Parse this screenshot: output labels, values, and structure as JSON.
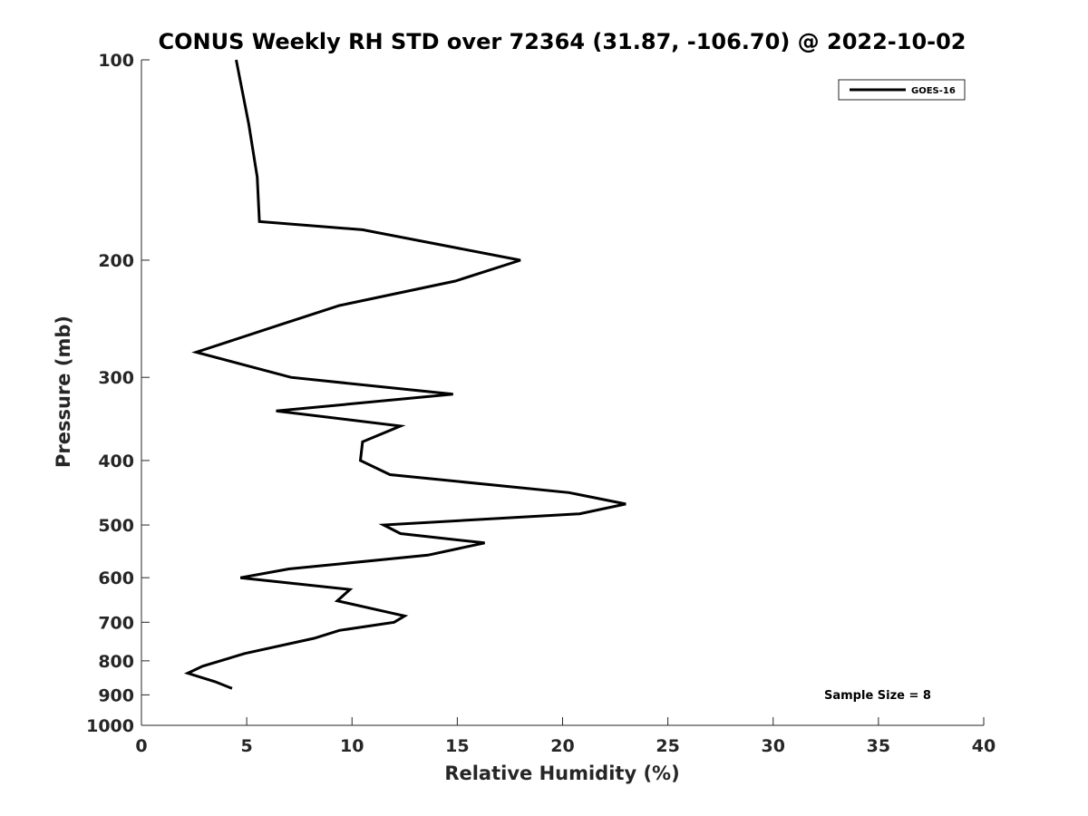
{
  "chart_data": {
    "type": "line",
    "title": "CONUS Weekly RH STD over 72364 (31.87, -106.70) @ 2022-10-02",
    "xlabel": "Relative Humidity (%)",
    "ylabel": "Pressure (mb)",
    "xlim": [
      0,
      40
    ],
    "ylim": [
      100,
      1000
    ],
    "y_scale": "log",
    "y_direction": "reversed",
    "x_ticks": [
      0,
      5,
      10,
      15,
      20,
      25,
      30,
      35,
      40
    ],
    "y_ticks": [
      100,
      200,
      300,
      400,
      500,
      600,
      700,
      800,
      900,
      1000
    ],
    "grid": false,
    "legend_position": "top-right",
    "series": [
      {
        "name": "GOES-16",
        "color": "#000000",
        "points": [
          {
            "x": 4.5,
            "y": 100
          },
          {
            "x": 5.1,
            "y": 125
          },
          {
            "x": 5.5,
            "y": 150
          },
          {
            "x": 5.6,
            "y": 175
          },
          {
            "x": 10.5,
            "y": 180
          },
          {
            "x": 18.0,
            "y": 200
          },
          {
            "x": 14.9,
            "y": 215
          },
          {
            "x": 9.4,
            "y": 234
          },
          {
            "x": 6.6,
            "y": 250
          },
          {
            "x": 2.6,
            "y": 275
          },
          {
            "x": 7.1,
            "y": 300
          },
          {
            "x": 14.8,
            "y": 318
          },
          {
            "x": 6.4,
            "y": 337
          },
          {
            "x": 12.3,
            "y": 355
          },
          {
            "x": 10.5,
            "y": 375
          },
          {
            "x": 10.4,
            "y": 400
          },
          {
            "x": 11.8,
            "y": 420
          },
          {
            "x": 20.3,
            "y": 447
          },
          {
            "x": 23.0,
            "y": 465
          },
          {
            "x": 20.8,
            "y": 481
          },
          {
            "x": 11.5,
            "y": 500
          },
          {
            "x": 12.3,
            "y": 515
          },
          {
            "x": 16.3,
            "y": 532
          },
          {
            "x": 13.6,
            "y": 555
          },
          {
            "x": 7.0,
            "y": 582
          },
          {
            "x": 4.7,
            "y": 600
          },
          {
            "x": 9.9,
            "y": 625
          },
          {
            "x": 9.3,
            "y": 650
          },
          {
            "x": 11.6,
            "y": 675
          },
          {
            "x": 12.5,
            "y": 685
          },
          {
            "x": 12.0,
            "y": 700
          },
          {
            "x": 9.4,
            "y": 720
          },
          {
            "x": 8.2,
            "y": 740
          },
          {
            "x": 4.9,
            "y": 780
          },
          {
            "x": 2.9,
            "y": 815
          },
          {
            "x": 2.2,
            "y": 835
          },
          {
            "x": 3.5,
            "y": 860
          },
          {
            "x": 4.3,
            "y": 880
          }
        ]
      }
    ],
    "annotations": [
      "Sample Size = 8"
    ]
  }
}
